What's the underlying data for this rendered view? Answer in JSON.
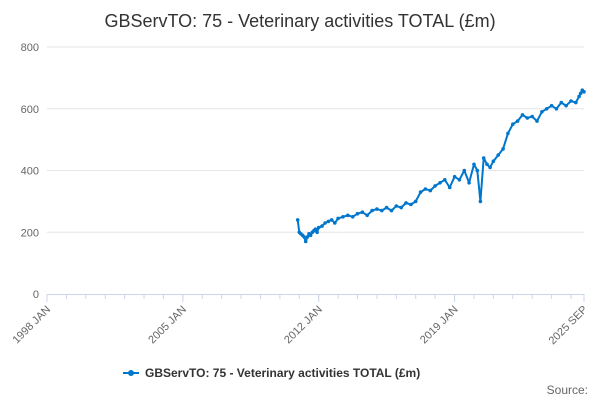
{
  "chart_data": {
    "type": "line",
    "title": "GBServTO: 75 - Veterinary activities TOTAL (£m)",
    "xlabel": "",
    "ylabel": "",
    "ylim": [
      0,
      800
    ],
    "y_ticks": [
      0,
      200,
      400,
      600,
      800
    ],
    "y_tick_labels": [
      "0",
      "200",
      "400",
      "600",
      "800"
    ],
    "x_range": [
      1998.0,
      2025.67
    ],
    "x_ticks": [
      1998.0,
      2005.0,
      2012.0,
      2019.0,
      2025.67
    ],
    "x_tick_labels": [
      "1998 JAN",
      "2005 JAN",
      "2012 JAN",
      "2019 JAN",
      "2025 SEP"
    ],
    "grid": "horizontal",
    "legend_position": "bottom",
    "series": [
      {
        "name": "GBServTO: 75 - Veterinary activities TOTAL (£m)",
        "color": "#0077cc",
        "x": [
          2010.92,
          2011.0,
          2011.08,
          2011.17,
          2011.25,
          2011.33,
          2011.42,
          2011.5,
          2011.58,
          2011.67,
          2011.75,
          2011.83,
          2011.92,
          2012.0,
          2012.17,
          2012.33,
          2012.5,
          2012.67,
          2012.83,
          2013.0,
          2013.25,
          2013.5,
          2013.75,
          2014.0,
          2014.25,
          2014.5,
          2014.75,
          2015.0,
          2015.25,
          2015.5,
          2015.75,
          2016.0,
          2016.25,
          2016.5,
          2016.75,
          2017.0,
          2017.25,
          2017.5,
          2017.75,
          2018.0,
          2018.25,
          2018.5,
          2018.75,
          2019.0,
          2019.25,
          2019.5,
          2019.75,
          2020.0,
          2020.17,
          2020.33,
          2020.5,
          2020.67,
          2020.83,
          2021.0,
          2021.25,
          2021.5,
          2021.75,
          2022.0,
          2022.25,
          2022.5,
          2022.75,
          2023.0,
          2023.25,
          2023.5,
          2023.75,
          2024.0,
          2024.25,
          2024.5,
          2024.75,
          2025.0,
          2025.25,
          2025.42,
          2025.5,
          2025.58,
          2025.67
        ],
        "values": [
          240,
          200,
          195,
          190,
          185,
          170,
          185,
          195,
          190,
          200,
          205,
          210,
          200,
          215,
          220,
          230,
          235,
          240,
          230,
          245,
          250,
          255,
          250,
          260,
          265,
          255,
          270,
          275,
          270,
          280,
          270,
          285,
          280,
          295,
          290,
          300,
          330,
          340,
          335,
          350,
          360,
          370,
          345,
          380,
          370,
          400,
          360,
          420,
          400,
          300,
          440,
          420,
          410,
          430,
          450,
          470,
          520,
          550,
          560,
          580,
          570,
          575,
          560,
          590,
          600,
          610,
          600,
          620,
          610,
          625,
          620,
          640,
          650,
          660,
          655
        ]
      }
    ],
    "source_label": "Source:"
  }
}
